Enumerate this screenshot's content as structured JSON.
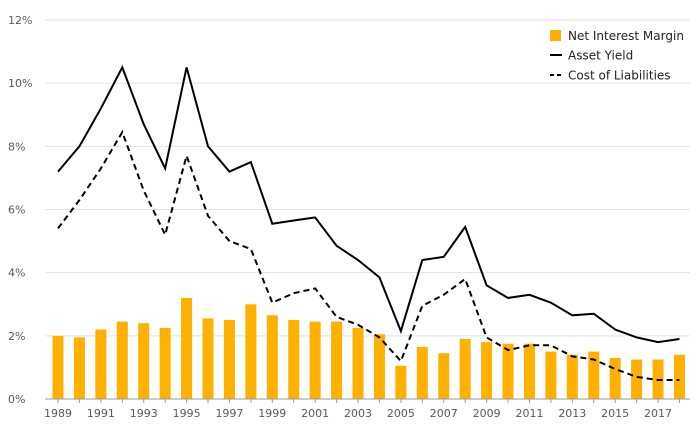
{
  "chart_data": {
    "type": "bar+line",
    "title": "",
    "xlabel": "",
    "ylabel": "",
    "ylim": [
      0,
      12
    ],
    "y_ticks": [
      0,
      2,
      4,
      6,
      8,
      10,
      12
    ],
    "y_tick_labels": [
      "0%",
      "2%",
      "4%",
      "6%",
      "8%",
      "10%",
      "12%"
    ],
    "x": [
      1989,
      1990,
      1991,
      1992,
      1993,
      1994,
      1995,
      1996,
      1997,
      1998,
      1999,
      2000,
      2001,
      2002,
      2003,
      2004,
      2005,
      2006,
      2007,
      2008,
      2009,
      2010,
      2011,
      2012,
      2013,
      2014,
      2015,
      2016,
      2017,
      2018
    ],
    "x_tick_labels": [
      "1989",
      "1991",
      "1993",
      "1995",
      "1997",
      "1999",
      "2001",
      "2003",
      "2005",
      "2007",
      "2009",
      "2011",
      "2013",
      "2015",
      "2017"
    ],
    "grid": true,
    "legend_position": "top-right",
    "series": [
      {
        "name": "Net Interest Margin",
        "kind": "bar",
        "color": "#FFB000",
        "values": [
          2.0,
          1.95,
          2.2,
          2.45,
          2.4,
          2.25,
          3.2,
          2.55,
          2.5,
          3.0,
          2.65,
          2.5,
          2.45,
          2.45,
          2.25,
          2.05,
          1.05,
          1.65,
          1.45,
          1.9,
          1.8,
          1.75,
          1.75,
          1.5,
          1.4,
          1.5,
          1.3,
          1.25,
          1.25,
          1.4
        ]
      },
      {
        "name": "Asset Yield",
        "kind": "line",
        "style": "solid",
        "color": "#000000",
        "values": [
          7.2,
          8.0,
          9.2,
          10.5,
          8.7,
          7.3,
          10.5,
          8.0,
          7.2,
          7.5,
          5.55,
          5.65,
          5.75,
          4.85,
          4.4,
          3.85,
          2.15,
          4.4,
          4.5,
          5.45,
          3.6,
          3.2,
          3.3,
          3.05,
          2.65,
          2.7,
          2.2,
          1.95,
          1.8,
          1.9
        ]
      },
      {
        "name": "Cost of Liabilities",
        "kind": "line",
        "style": "dashed",
        "color": "#000000",
        "values": [
          5.4,
          6.3,
          7.3,
          8.45,
          6.6,
          5.2,
          7.7,
          5.8,
          5.0,
          4.75,
          3.05,
          3.35,
          3.5,
          2.6,
          2.35,
          1.95,
          1.2,
          2.95,
          3.3,
          3.8,
          1.95,
          1.55,
          1.7,
          1.7,
          1.35,
          1.25,
          0.95,
          0.7,
          0.6,
          0.6
        ]
      }
    ]
  }
}
